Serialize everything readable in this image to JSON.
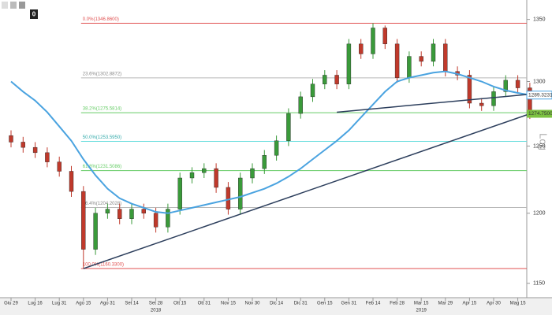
{
  "toolbar": {
    "badge": "0"
  },
  "chart_data": {
    "type": "candlestick",
    "log_scale": true,
    "ylim": [
      1140,
      1366
    ],
    "yticks": [
      1150,
      1200,
      1250,
      1300,
      1350
    ],
    "categories": [
      "Giu 29",
      null,
      "Lug 16",
      null,
      "Lug 31",
      null,
      "Ago 15",
      null,
      "Ago 31",
      null,
      "Set 14",
      null,
      "Set 28",
      null,
      "Ott 15",
      null,
      "Ott 31",
      null,
      "Nov 15",
      null,
      "Nov 30",
      null,
      "Dic 14",
      null,
      "Dic 31",
      null,
      "Gen 15",
      null,
      "Gen 31",
      null,
      "Feb 14",
      null,
      "Feb 28",
      null,
      "Mar 15",
      null,
      "Mar 29",
      null,
      "Apr 15",
      null,
      "Apr 30",
      null,
      "Mag 15",
      null
    ],
    "year_labels": [
      {
        "text": "2018",
        "at": 12
      },
      {
        "text": "2019",
        "at": 34
      }
    ],
    "up_color": "#3a9a3a",
    "down_color": "#c0392b",
    "open": [
      1258,
      1253,
      1249,
      1245,
      1238,
      1231,
      1216,
      1174,
      1200,
      1203,
      1196,
      1203,
      1200,
      1190,
      1203,
      1226,
      1230,
      1233,
      1219,
      1203,
      1226,
      1233,
      1243,
      1254,
      1275,
      1288,
      1298,
      1305,
      1298,
      1330,
      1322,
      1343,
      1330,
      1303,
      1320,
      1316,
      1330,
      1308,
      1305,
      1283,
      1281,
      1292,
      1301,
      1295
    ],
    "high": [
      1262,
      1257,
      1253,
      1249,
      1242,
      1235,
      1220,
      1204,
      1207,
      1207,
      1207,
      1207,
      1204,
      1207,
      1230,
      1234,
      1237,
      1237,
      1223,
      1230,
      1237,
      1247,
      1258,
      1279,
      1292,
      1302,
      1309,
      1309,
      1334,
      1334,
      1346.86,
      1345,
      1334,
      1324,
      1324,
      1334,
      1334,
      1312,
      1309,
      1287,
      1296,
      1305,
      1305,
      1299
    ],
    "low": [
      1249,
      1245,
      1241,
      1234,
      1227,
      1212,
      1160.33,
      1170,
      1196,
      1192,
      1192,
      1196,
      1186,
      1186,
      1199,
      1222,
      1226,
      1215,
      1199,
      1199,
      1222,
      1229,
      1239,
      1250,
      1271,
      1284,
      1294,
      1294,
      1294,
      1318,
      1318,
      1326,
      1299,
      1299,
      1312,
      1312,
      1304,
      1301,
      1279,
      1277,
      1277,
      1288,
      1291,
      1270.75
    ],
    "close": [
      1253,
      1249,
      1245,
      1238,
      1231,
      1216,
      1174,
      1200,
      1203,
      1196,
      1203,
      1200,
      1190,
      1203,
      1226,
      1230,
      1233,
      1219,
      1203,
      1226,
      1233,
      1243,
      1254,
      1275,
      1288,
      1298,
      1305,
      1298,
      1330,
      1322,
      1343,
      1330,
      1303,
      1320,
      1316,
      1330,
      1308,
      1305,
      1283,
      1281,
      1292,
      1301,
      1295,
      1274.75
    ],
    "last_price": {
      "value": 1274.75,
      "label": "1274.7500",
      "color": "#7dc242"
    },
    "moving_average": {
      "color": "#4aa3e0",
      "values": [
        1300,
        1292,
        1285,
        1276,
        1265,
        1254,
        1240,
        1228,
        1218,
        1211,
        1207,
        1204,
        1201,
        1200,
        1202,
        1204,
        1206,
        1208,
        1210,
        1212,
        1215,
        1218,
        1222,
        1227,
        1233,
        1240,
        1247,
        1254,
        1262,
        1272,
        1282,
        1292,
        1300,
        1303,
        1305,
        1307,
        1308,
        1306,
        1303,
        1300,
        1296,
        1293,
        1291,
        1289.3231
      ]
    },
    "fib_start": 6,
    "fib_levels": [
      {
        "label": "0.0%(1346.8600)",
        "value": 1346.86,
        "color": "#e05050"
      },
      {
        "label": "23.6%(1302.8872)",
        "value": 1302.8872,
        "color": "#b8b8b8"
      },
      {
        "label": "38.2%(1275.5814)",
        "value": 1275.5814,
        "color": "#66cc66"
      },
      {
        "label": "50.0%(1253.5950)",
        "value": 1253.595,
        "color": "#66dddd"
      },
      {
        "label": "61.8%(1231.5086)",
        "value": 1231.5086,
        "color": "#66cc66"
      },
      {
        "label": "76.4%(1204.2028)",
        "value": 1204.2028,
        "color": "#b8b8b8"
      },
      {
        "label": "100.0%(1160.3300)",
        "value": 1160.33,
        "color": "#e05050"
      }
    ],
    "trendlines": [
      {
        "x": [
          6,
          43
        ],
        "y": [
          1160.33,
          1274.75
        ],
        "color": "#2c3e5c"
      },
      {
        "x": [
          27,
          43
        ],
        "y": [
          1276,
          1290
        ],
        "color": "#2c3e5c"
      }
    ],
    "axis_label": "Log"
  }
}
